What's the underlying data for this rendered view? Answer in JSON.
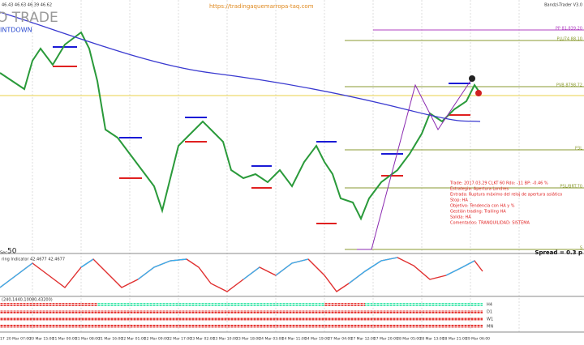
{
  "header": {
    "prices": "46.43 46.63 46.39 46.62",
    "title": "O TRADE",
    "subtitle": "INTDOWN",
    "url": "https://tradingaquemarropa-taq.com",
    "indicator": "Bandzi-Trader V3.0"
  },
  "levels": [
    "PP 81,839.20",
    "PLU74 88.10",
    "PVB 8798.72",
    "P3L",
    "PSL/BRT.70",
    "S"
  ],
  "seconds": {
    "value": "50",
    "label": "Sec"
  },
  "spread": "Spread = 0.3 p",
  "trade_info": [
    "Trade: 2017.03.29 CLKT 60  Rdo: -11  BP: -0.46 %",
    "Estrategia: Apertura Londres",
    "Entrada: Ruptura máximo del reloj de apertura asiático",
    "Stop: HA",
    "Objetivo: Tendencia con HA y %",
    "Gestión trading: Trailing HA",
    "Salida: HA",
    "Comentarios: TRANQUILIDAD: SISTEMA"
  ],
  "oscillator": {
    "label": "ring Indicator 42.4677 42.4677"
  },
  "timeframes": {
    "label": "(240,1440,10080,43200)",
    "rows": [
      "H4",
      "D1",
      "W1",
      "MN"
    ]
  },
  "time_axis": [
    "17",
    "20 Mar 07:00",
    "20 Mar 15:00",
    "21 Mar 00:00",
    "21 Mar 08:00",
    "21 Mar 16:00",
    "22 Mar 01:00",
    "22 Mar 09:00",
    "22 Mar 17:00",
    "23 Mar 02:00",
    "23 Mar 10:00",
    "23 Mar 18:00",
    "24 Mar 03:00",
    "24 Mar 11:00",
    "24 Mar 19:00",
    "27 Mar 04:00",
    "27 Mar 12:00",
    "27 Mar 20:00",
    "28 Mar 05:00",
    "28 Mar 13:00",
    "28 Mar 21:00",
    "29 Mar 06:00"
  ]
}
